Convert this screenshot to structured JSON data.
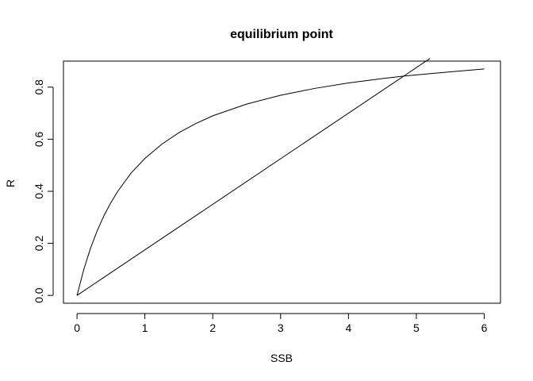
{
  "chart_data": {
    "type": "line",
    "title": "equilibrium point",
    "xlabel": "SSB",
    "ylabel": "R",
    "xlim": [
      -0.2,
      6.24
    ],
    "ylim": [
      -0.03,
      0.9
    ],
    "x_ticks": [
      0,
      1,
      2,
      3,
      4,
      5,
      6
    ],
    "x_tick_labels": [
      "0",
      "1",
      "2",
      "3",
      "4",
      "5",
      "6"
    ],
    "y_ticks": [
      0.0,
      0.2,
      0.4,
      0.6,
      0.8
    ],
    "y_tick_labels": [
      "0.0",
      "0.2",
      "0.4",
      "0.6",
      "0.8"
    ],
    "grid": false,
    "legend": "none",
    "series": [
      {
        "kind": "curve",
        "x": [
          0,
          0.1,
          0.2,
          0.3,
          0.4,
          0.5,
          0.6,
          0.8,
          1.0,
          1.25,
          1.5,
          1.75,
          2.0,
          2.5,
          3.0,
          3.5,
          4.0,
          4.5,
          4.8,
          5.0,
          5.5,
          6.0
        ],
        "y": [
          0,
          0.1,
          0.182,
          0.25,
          0.308,
          0.357,
          0.4,
          0.471,
          0.526,
          0.581,
          0.625,
          0.66,
          0.69,
          0.735,
          0.769,
          0.795,
          0.816,
          0.833,
          0.842,
          0.847,
          0.859,
          0.87
        ]
      },
      {
        "kind": "line",
        "x": [
          0,
          5.2
        ],
        "y": [
          0,
          0.91
        ]
      }
    ],
    "line_color": "#000000"
  }
}
